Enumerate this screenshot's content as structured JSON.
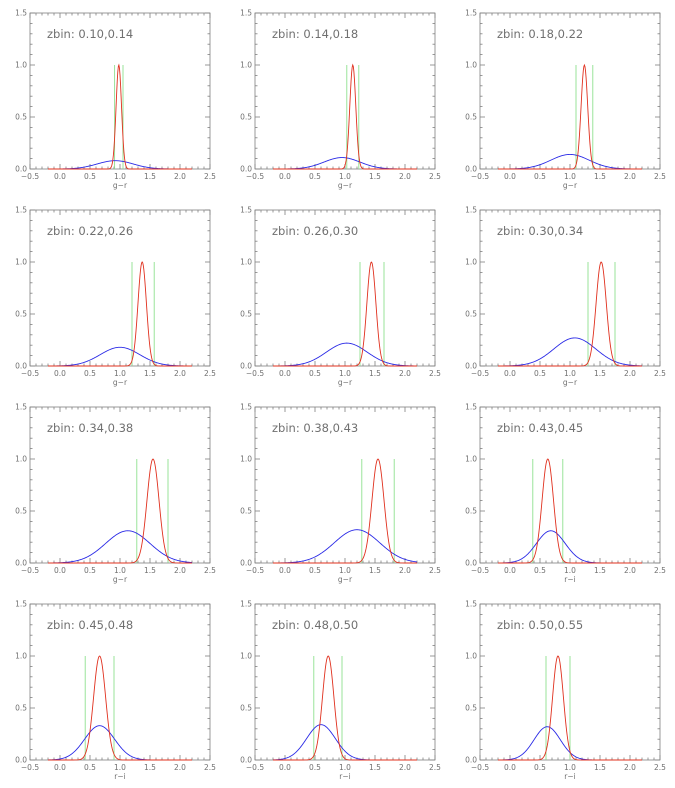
{
  "colors": {
    "red_curve": "#e0301e",
    "blue_curve": "#2a2ae6",
    "cut_lines": "#8fe08f",
    "axes": "#808080"
  },
  "chart_data": [
    {
      "type": "line",
      "title": "zbin: 0.10,0.14",
      "xlabel": "g−r",
      "xlim": [
        -0.5,
        2.5
      ],
      "ylim": [
        0,
        1.5
      ],
      "xticks": [
        "−0.5",
        "0.0",
        "0.5",
        "1.0",
        "1.5",
        "2.0",
        "2.5"
      ],
      "yticks": [
        "0.0",
        "0.5",
        "1.0",
        "1.5"
      ],
      "red": {
        "mu": 0.98,
        "sigma": 0.045,
        "peak": 1.0
      },
      "blue": {
        "mu": 0.92,
        "sigma": 0.3,
        "peak": 0.08
      },
      "cuts": [
        0.91,
        1.05
      ]
    },
    {
      "type": "line",
      "title": "zbin: 0.14,0.18",
      "xlabel": "g−r",
      "xlim": [
        -0.5,
        2.5
      ],
      "ylim": [
        0,
        1.5
      ],
      "xticks": [
        "−0.5",
        "0.0",
        "0.5",
        "1.0",
        "1.5",
        "2.0",
        "2.5"
      ],
      "yticks": [
        "0.0",
        "0.5",
        "1.0",
        "1.5"
      ],
      "red": {
        "mu": 1.13,
        "sigma": 0.05,
        "peak": 1.0
      },
      "blue": {
        "mu": 0.95,
        "sigma": 0.3,
        "peak": 0.11
      },
      "cuts": [
        1.03,
        1.23
      ]
    },
    {
      "type": "line",
      "title": "zbin: 0.18,0.22",
      "xlabel": "g−r",
      "xlim": [
        -0.5,
        2.5
      ],
      "ylim": [
        0,
        1.5
      ],
      "xticks": [
        "−0.5",
        "0.0",
        "0.5",
        "1.0",
        "1.5",
        "2.0",
        "2.5"
      ],
      "yticks": [
        "0.0",
        "0.5",
        "1.0",
        "1.5"
      ],
      "red": {
        "mu": 1.24,
        "sigma": 0.055,
        "peak": 1.0
      },
      "blue": {
        "mu": 1.0,
        "sigma": 0.32,
        "peak": 0.14
      },
      "cuts": [
        1.1,
        1.38
      ]
    },
    {
      "type": "line",
      "title": "zbin: 0.22,0.26",
      "xlabel": "g−r",
      "xlim": [
        -0.5,
        2.5
      ],
      "ylim": [
        0,
        1.5
      ],
      "xticks": [
        "−0.5",
        "0.0",
        "0.5",
        "1.0",
        "1.5",
        "2.0",
        "2.5"
      ],
      "yticks": [
        "0.0",
        "0.5",
        "1.0",
        "1.5"
      ],
      "red": {
        "mu": 1.37,
        "sigma": 0.07,
        "peak": 1.0
      },
      "blue": {
        "mu": 1.0,
        "sigma": 0.33,
        "peak": 0.18
      },
      "cuts": [
        1.2,
        1.57
      ]
    },
    {
      "type": "line",
      "title": "zbin: 0.26,0.30",
      "xlabel": "g−r",
      "xlim": [
        -0.5,
        2.5
      ],
      "ylim": [
        0,
        1.5
      ],
      "xticks": [
        "−0.5",
        "0.0",
        "0.5",
        "1.0",
        "1.5",
        "2.0",
        "2.5"
      ],
      "yticks": [
        "0.0",
        "0.5",
        "1.0",
        "1.5"
      ],
      "red": {
        "mu": 1.44,
        "sigma": 0.075,
        "peak": 1.0
      },
      "blue": {
        "mu": 1.03,
        "sigma": 0.34,
        "peak": 0.22
      },
      "cuts": [
        1.25,
        1.65
      ]
    },
    {
      "type": "line",
      "title": "zbin: 0.30,0.34",
      "xlabel": "g−r",
      "xlim": [
        -0.5,
        2.5
      ],
      "ylim": [
        0,
        1.5
      ],
      "xticks": [
        "−0.5",
        "0.0",
        "0.5",
        "1.0",
        "1.5",
        "2.0",
        "2.5"
      ],
      "yticks": [
        "0.0",
        "0.5",
        "1.0",
        "1.5"
      ],
      "red": {
        "mu": 1.52,
        "sigma": 0.085,
        "peak": 1.0
      },
      "blue": {
        "mu": 1.08,
        "sigma": 0.35,
        "peak": 0.27
      },
      "cuts": [
        1.3,
        1.75
      ]
    },
    {
      "type": "line",
      "title": "zbin: 0.34,0.38",
      "xlabel": "g−r",
      "xlim": [
        -0.5,
        2.5
      ],
      "ylim": [
        0,
        1.5
      ],
      "xticks": [
        "−0.5",
        "0.0",
        "0.5",
        "1.0",
        "1.5",
        "2.0",
        "2.5"
      ],
      "yticks": [
        "0.0",
        "0.5",
        "1.0",
        "1.5"
      ],
      "red": {
        "mu": 1.55,
        "sigma": 0.1,
        "peak": 1.0
      },
      "blue": {
        "mu": 1.13,
        "sigma": 0.37,
        "peak": 0.31
      },
      "cuts": [
        1.28,
        1.8
      ]
    },
    {
      "type": "line",
      "title": "zbin: 0.38,0.43",
      "xlabel": "g−r",
      "xlim": [
        -0.5,
        2.5
      ],
      "ylim": [
        0,
        1.5
      ],
      "xticks": [
        "−0.5",
        "0.0",
        "0.5",
        "1.0",
        "1.5",
        "2.0",
        "2.5"
      ],
      "yticks": [
        "0.0",
        "0.5",
        "1.0",
        "1.5"
      ],
      "red": {
        "mu": 1.55,
        "sigma": 0.1,
        "peak": 1.0
      },
      "blue": {
        "mu": 1.2,
        "sigma": 0.38,
        "peak": 0.32
      },
      "cuts": [
        1.28,
        1.82
      ]
    },
    {
      "type": "line",
      "title": "zbin: 0.43,0.45",
      "xlabel": "r−i",
      "xlim": [
        -0.5,
        2.5
      ],
      "ylim": [
        0,
        1.5
      ],
      "xticks": [
        "−0.5",
        "0.0",
        "0.5",
        "1.0",
        "1.5",
        "2.0",
        "2.5"
      ],
      "yticks": [
        "0.0",
        "0.5",
        "1.0",
        "1.5"
      ],
      "red": {
        "mu": 0.63,
        "sigma": 0.095,
        "peak": 1.0
      },
      "blue": {
        "mu": 0.68,
        "sigma": 0.24,
        "peak": 0.31
      },
      "cuts": [
        0.38,
        0.88
      ]
    },
    {
      "type": "line",
      "title": "zbin: 0.45,0.48",
      "xlabel": "r−i",
      "xlim": [
        -0.5,
        2.5
      ],
      "ylim": [
        0,
        1.5
      ],
      "xticks": [
        "−0.5",
        "0.0",
        "0.5",
        "1.0",
        "1.5",
        "2.0",
        "2.5"
      ],
      "yticks": [
        "0.0",
        "0.5",
        "1.0",
        "1.5"
      ],
      "red": {
        "mu": 0.66,
        "sigma": 0.1,
        "peak": 1.0
      },
      "blue": {
        "mu": 0.66,
        "sigma": 0.25,
        "peak": 0.33
      },
      "cuts": [
        0.42,
        0.9
      ]
    },
    {
      "type": "line",
      "title": "zbin: 0.48,0.50",
      "xlabel": "r−i",
      "xlim": [
        -0.5,
        2.5
      ],
      "ylim": [
        0,
        1.5
      ],
      "xticks": [
        "−0.5",
        "0.0",
        "0.5",
        "1.0",
        "1.5",
        "2.0",
        "2.5"
      ],
      "yticks": [
        "0.0",
        "0.5",
        "1.0",
        "1.5"
      ],
      "red": {
        "mu": 0.72,
        "sigma": 0.095,
        "peak": 1.0
      },
      "blue": {
        "mu": 0.6,
        "sigma": 0.24,
        "peak": 0.34
      },
      "cuts": [
        0.48,
        0.95
      ]
    },
    {
      "type": "line",
      "title": "zbin: 0.50,0.55",
      "xlabel": "r−i",
      "xlim": [
        -0.5,
        2.5
      ],
      "ylim": [
        0,
        1.5
      ],
      "xticks": [
        "−0.5",
        "0.0",
        "0.5",
        "1.0",
        "1.5",
        "2.0",
        "2.5"
      ],
      "yticks": [
        "0.0",
        "0.5",
        "1.0",
        "1.5"
      ],
      "red": {
        "mu": 0.8,
        "sigma": 0.09,
        "peak": 1.0
      },
      "blue": {
        "mu": 0.62,
        "sigma": 0.22,
        "peak": 0.32
      },
      "cuts": [
        0.6,
        1.0
      ]
    }
  ]
}
